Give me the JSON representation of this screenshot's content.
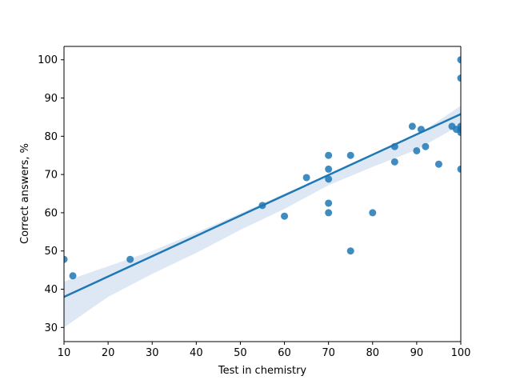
{
  "chart_data": {
    "type": "scatter",
    "title": "",
    "xlabel": "Test in chemistry",
    "ylabel": "Correct answers, %",
    "xlim": [
      10,
      100
    ],
    "ylim": [
      26.3,
      103.5
    ],
    "x_ticks": [
      10,
      20,
      30,
      40,
      50,
      60,
      70,
      80,
      90,
      100
    ],
    "y_ticks": [
      30,
      40,
      50,
      60,
      70,
      80,
      90,
      100
    ],
    "grid": false,
    "legend": "none",
    "colors": {
      "points": "#1f77b4",
      "line": "#1f77b4",
      "band": "#c6d9ec"
    },
    "points": [
      {
        "x": 10,
        "y": 47.8
      },
      {
        "x": 12,
        "y": 43.5
      },
      {
        "x": 25,
        "y": 47.8
      },
      {
        "x": 55,
        "y": 61.9
      },
      {
        "x": 60,
        "y": 59.1
      },
      {
        "x": 65,
        "y": 69.2
      },
      {
        "x": 70,
        "y": 75.0
      },
      {
        "x": 70,
        "y": 71.4
      },
      {
        "x": 70,
        "y": 68.8
      },
      {
        "x": 70,
        "y": 62.5
      },
      {
        "x": 70,
        "y": 60.0
      },
      {
        "x": 75,
        "y": 75.0
      },
      {
        "x": 75,
        "y": 50.0
      },
      {
        "x": 80,
        "y": 60.0
      },
      {
        "x": 85,
        "y": 77.3
      },
      {
        "x": 85,
        "y": 73.3
      },
      {
        "x": 89,
        "y": 82.6
      },
      {
        "x": 90,
        "y": 76.2
      },
      {
        "x": 91,
        "y": 81.8
      },
      {
        "x": 92,
        "y": 77.3
      },
      {
        "x": 95,
        "y": 72.7
      },
      {
        "x": 98,
        "y": 82.6
      },
      {
        "x": 99,
        "y": 81.8
      },
      {
        "x": 100,
        "y": 100.0
      },
      {
        "x": 100,
        "y": 95.2
      },
      {
        "x": 100,
        "y": 82.6
      },
      {
        "x": 100,
        "y": 81.8
      },
      {
        "x": 100,
        "y": 81.0
      },
      {
        "x": 100,
        "y": 71.4
      }
    ],
    "regression": {
      "x": [
        10,
        100
      ],
      "y": [
        38.0,
        85.8
      ]
    },
    "confidence_band": {
      "x": [
        10,
        20,
        30,
        40,
        50,
        60,
        70,
        80,
        90,
        100
      ],
      "lower": [
        30.0,
        38.0,
        44.0,
        49.5,
        55.5,
        61.0,
        67.2,
        72.0,
        76.5,
        83.0
      ],
      "upper": [
        42.0,
        46.0,
        50.0,
        54.8,
        59.8,
        65.0,
        69.8,
        74.8,
        80.2,
        88.0
      ]
    }
  }
}
